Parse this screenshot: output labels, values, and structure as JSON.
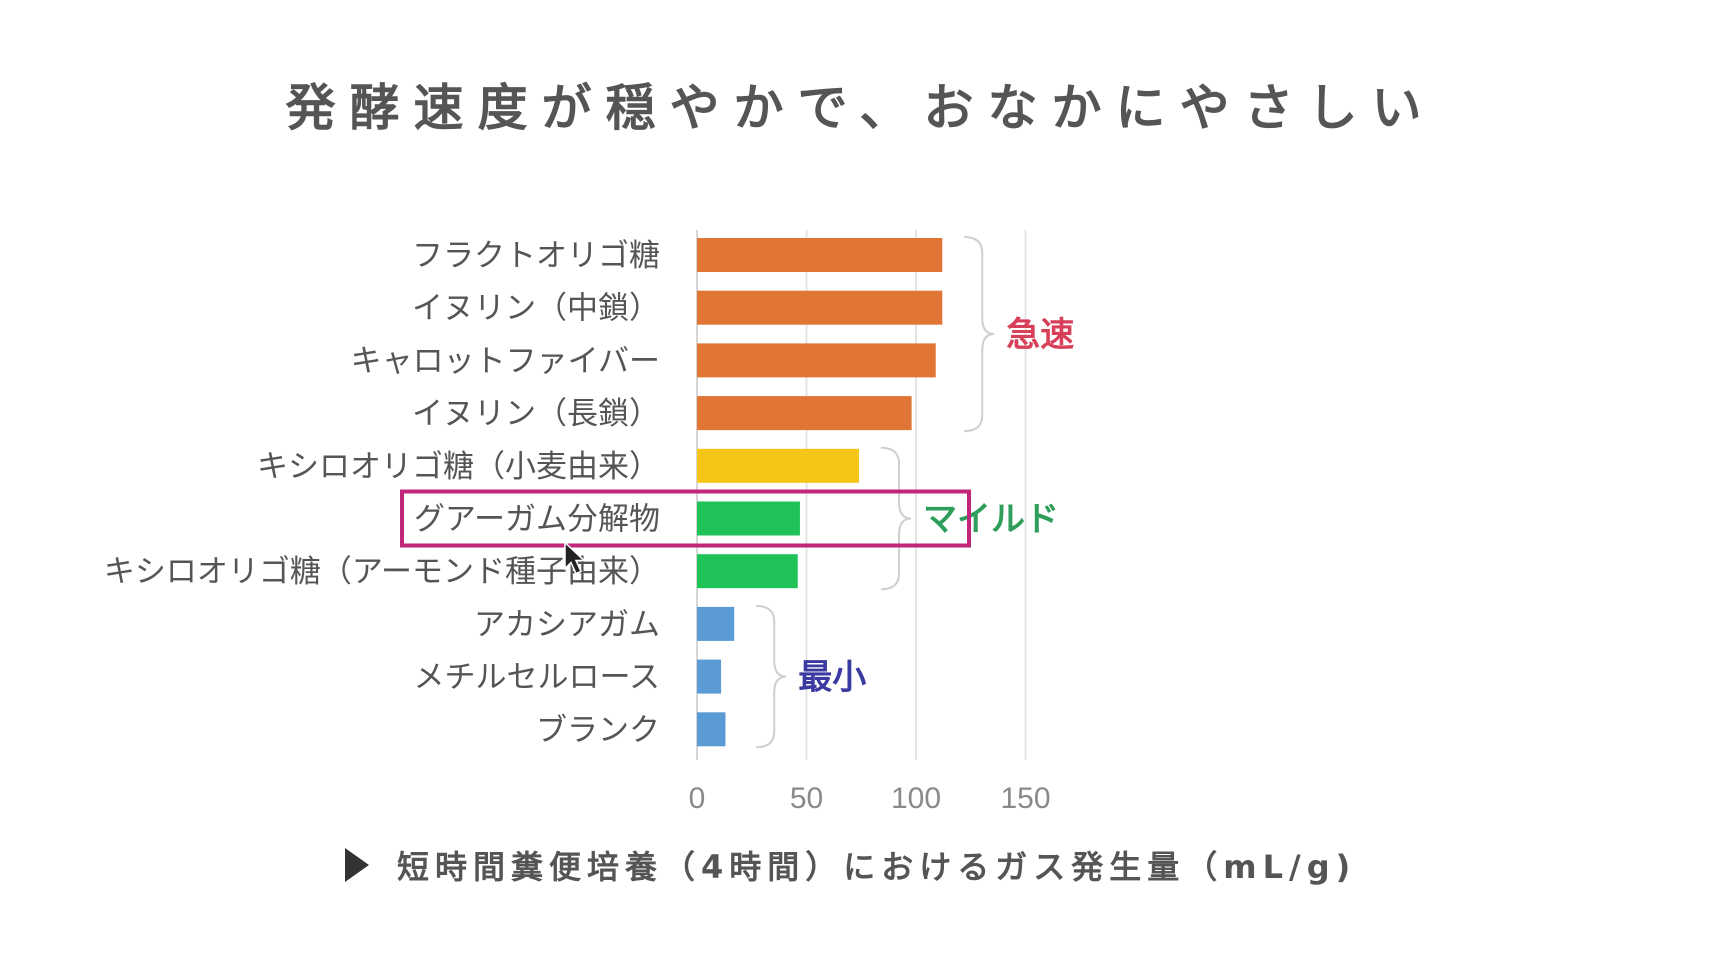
{
  "title": "発酵速度が穏やかで、おなかにやさしい",
  "caption": "短時間糞便培養（4時間）におけるガス発生量（mL/g)",
  "colors": {
    "fast": "#E07535",
    "yellow": "#F5C518",
    "mild": "#1EC257",
    "min": "#5B9BD5",
    "highlight": "#C0267A",
    "fast_label": "#D8405A",
    "mild_label": "#2E9E5A",
    "min_label": "#3A3AA0"
  },
  "chart_data": {
    "type": "bar",
    "orientation": "horizontal",
    "title": "",
    "xlabel": "",
    "ylabel": "",
    "xlim": [
      0,
      150
    ],
    "xticks": [
      0,
      50,
      100,
      150
    ],
    "grid": true,
    "categories": [
      "フラクトオリゴ糖",
      "イヌリン（中鎖）",
      "キャロットファイバー",
      "イヌリン（長鎖）",
      "キシロオリゴ糖（小麦由来）",
      "グアーガム分解物",
      "キシロオリゴ糖（アーモンド種子由来）",
      "アカシアガム",
      "メチルセルロース",
      "ブランク"
    ],
    "values": [
      112,
      112,
      109,
      98,
      74,
      47,
      46,
      17,
      11,
      13
    ],
    "bar_colors": [
      "fast",
      "fast",
      "fast",
      "fast",
      "yellow",
      "mild",
      "mild",
      "min",
      "min",
      "min"
    ],
    "highlighted_category": "グアーガム分解物",
    "groups": [
      {
        "label": "急速",
        "first": 0,
        "last": 3,
        "color": "fast_label"
      },
      {
        "label": "マイルド",
        "first": 4,
        "last": 6,
        "color": "mild_label"
      },
      {
        "label": "最小",
        "first": 7,
        "last": 9,
        "color": "min_label"
      }
    ]
  }
}
